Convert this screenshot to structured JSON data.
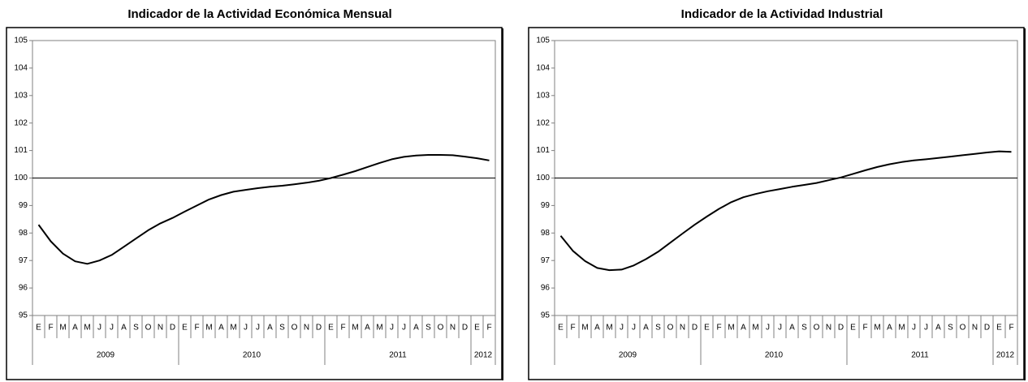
{
  "chart_data": [
    {
      "type": "line",
      "title": "Indicador de la Actividad Económica Mensual",
      "groups": [
        {
          "year": "2009",
          "months": [
            "E",
            "F",
            "M",
            "A",
            "M",
            "J",
            "J",
            "A",
            "S",
            "O",
            "N",
            "D"
          ]
        },
        {
          "year": "2010",
          "months": [
            "E",
            "F",
            "M",
            "A",
            "M",
            "J",
            "J",
            "A",
            "S",
            "O",
            "N",
            "D"
          ]
        },
        {
          "year": "2011",
          "months": [
            "E",
            "F",
            "M",
            "A",
            "M",
            "J",
            "J",
            "A",
            "S",
            "O",
            "N",
            "D"
          ]
        },
        {
          "year": "2012",
          "months": [
            "E",
            "F"
          ]
        }
      ],
      "values": [
        98.3,
        97.7,
        97.25,
        96.97,
        96.88,
        97.0,
        97.2,
        97.5,
        97.8,
        98.1,
        98.35,
        98.55,
        98.78,
        99.0,
        99.22,
        99.38,
        99.5,
        99.57,
        99.63,
        99.68,
        99.72,
        99.77,
        99.83,
        99.9,
        100.0,
        100.12,
        100.25,
        100.4,
        100.55,
        100.68,
        100.77,
        100.82,
        100.84,
        100.84,
        100.83,
        100.78,
        100.72,
        100.64
      ],
      "color": "#000000",
      "reference_line": 100,
      "ylim": [
        95,
        105
      ],
      "yticks": [
        95,
        96,
        97,
        98,
        99,
        100,
        101,
        102,
        103,
        104,
        105
      ]
    },
    {
      "type": "line",
      "title": "Indicador de la Actividad Industrial",
      "groups": [
        {
          "year": "2009",
          "months": [
            "E",
            "F",
            "M",
            "A",
            "M",
            "J",
            "J",
            "A",
            "S",
            "O",
            "N",
            "D"
          ]
        },
        {
          "year": "2010",
          "months": [
            "E",
            "F",
            "M",
            "A",
            "M",
            "J",
            "J",
            "A",
            "S",
            "O",
            "N",
            "D"
          ]
        },
        {
          "year": "2011",
          "months": [
            "E",
            "F",
            "M",
            "A",
            "M",
            "J",
            "J",
            "A",
            "S",
            "O",
            "N",
            "D"
          ]
        },
        {
          "year": "2012",
          "months": [
            "E",
            "F"
          ]
        }
      ],
      "values": [
        97.9,
        97.35,
        96.98,
        96.73,
        96.65,
        96.67,
        96.82,
        97.05,
        97.32,
        97.65,
        97.98,
        98.3,
        98.6,
        98.88,
        99.12,
        99.3,
        99.42,
        99.52,
        99.6,
        99.68,
        99.75,
        99.82,
        99.92,
        100.02,
        100.15,
        100.28,
        100.4,
        100.5,
        100.58,
        100.64,
        100.68,
        100.73,
        100.78,
        100.83,
        100.88,
        100.93,
        100.97,
        100.95
      ],
      "color": "#000000",
      "reference_line": 100,
      "ylim": [
        95,
        105
      ],
      "yticks": [
        95,
        96,
        97,
        98,
        99,
        100,
        101,
        102,
        103,
        104,
        105
      ]
    }
  ]
}
